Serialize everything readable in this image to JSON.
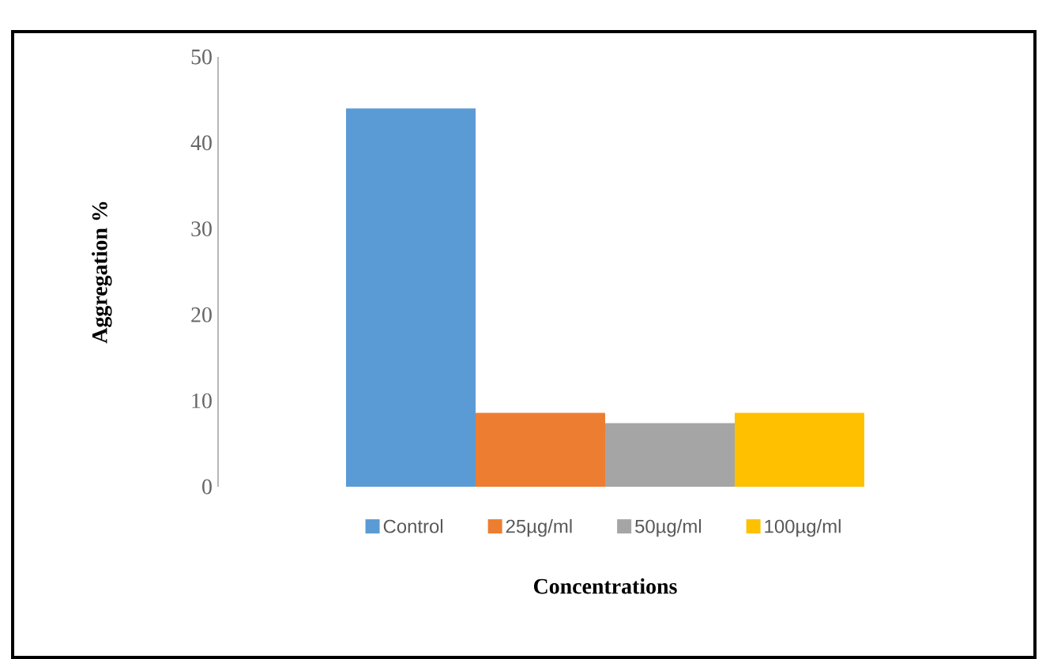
{
  "chart_data": {
    "type": "bar",
    "xlabel": "Concentrations",
    "ylabel": "Aggregation %",
    "categories": [
      null
    ],
    "series": [
      {
        "name": "Control",
        "color": "#5b9bd5",
        "values": [
          44
        ]
      },
      {
        "name": "25µg/ml",
        "color": "#ed7d31",
        "values": [
          8.6
        ]
      },
      {
        "name": "50µg/ml",
        "color": "#a5a5a5",
        "values": [
          7.4
        ]
      },
      {
        "name": "100µg/ml",
        "color": "#ffc000",
        "values": [
          8.6
        ]
      }
    ],
    "ylim": [
      0,
      50
    ],
    "yticks": [
      0,
      10,
      20,
      30,
      40,
      50
    ],
    "grid": false,
    "legend": "bottom"
  }
}
